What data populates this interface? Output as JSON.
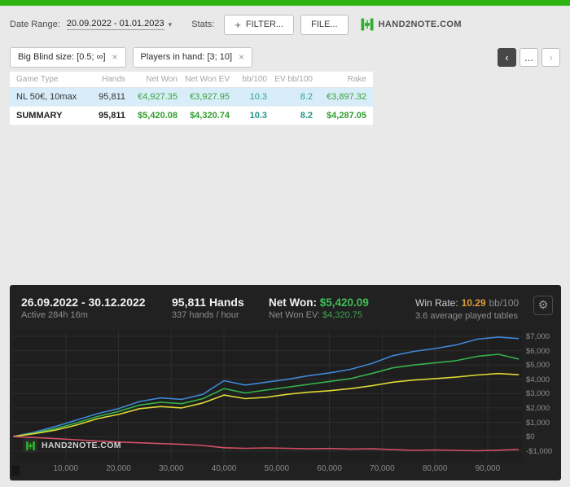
{
  "header": {
    "date_range_label": "Date Range:",
    "date_range_value": "20.09.2022 - 01.01.2023",
    "stats_label": "Stats:",
    "filter_button": "FILTER...",
    "file_button": "FILE...",
    "logo_text": "HAND2NOTE.COM"
  },
  "icons": {
    "close": "×",
    "caret": "▾",
    "plus": "+",
    "prev": "‹",
    "next": "›",
    "ellipsis": "...",
    "gear": "⚙"
  },
  "filters": {
    "chips": [
      {
        "label": "Big Blind size: [0.5; ∞]"
      },
      {
        "label": "Players in hand: [3; 10]"
      }
    ]
  },
  "table": {
    "columns": [
      "Game Type",
      "Hands",
      "Net Won",
      "Net Won EV",
      "bb/100",
      "EV bb/100",
      "Rake"
    ],
    "rows": [
      {
        "game_type": "NL 50€, 10max",
        "hands": "95,811",
        "net_won": "€4,927.35",
        "net_won_ev": "€3,927.95",
        "bb100": "10.3",
        "ev_bb100": "8.2",
        "rake": "€3,897.32"
      },
      {
        "game_type": "SUMMARY",
        "hands": "95,811",
        "net_won": "$5,420.08",
        "net_won_ev": "$4,320.74",
        "bb100": "10.3",
        "ev_bb100": "8.2",
        "rake": "$4,287.05"
      }
    ]
  },
  "panel": {
    "date_range": "26.09.2022 - 30.12.2022",
    "active_time": "Active 284h 16m",
    "hands": "95,811 Hands",
    "hands_per_hour": "337 hands / hour",
    "net_won_label": "Net Won:",
    "net_won_value": "$5,420.09",
    "net_won_ev_label": "Net Won EV:",
    "net_won_ev_value": "$4,320.75",
    "win_rate_label": "Win Rate:",
    "win_rate_value": "10.29",
    "win_rate_unit": "bb/100",
    "avg_tables": "3.6 average played tables",
    "watermark": "HAND2NOTE.COM"
  },
  "chart_data": {
    "type": "line",
    "grid": true,
    "legend": "none",
    "xlim": [
      0,
      96500
    ],
    "ylim": [
      -1700,
      7400
    ],
    "x": [
      0,
      4000,
      8000,
      12000,
      16000,
      20000,
      24000,
      28000,
      32000,
      36000,
      40000,
      44000,
      48000,
      52000,
      56000,
      60000,
      64000,
      68000,
      72000,
      76000,
      80000,
      84000,
      88000,
      92000,
      95811
    ],
    "series": [
      {
        "name": "blue-line",
        "color": "#3f87d6",
        "values": [
          0,
          300,
          700,
          1150,
          1600,
          1950,
          2450,
          2700,
          2600,
          2950,
          3900,
          3600,
          3800,
          4000,
          4250,
          4450,
          4700,
          5100,
          5650,
          5950,
          6150,
          6400,
          6800,
          6950,
          6850
        ]
      },
      {
        "name": "green-line",
        "color": "#35b24a",
        "values": [
          0,
          250,
          550,
          950,
          1400,
          1750,
          2200,
          2400,
          2300,
          2650,
          3350,
          3050,
          3250,
          3450,
          3650,
          3850,
          4050,
          4400,
          4800,
          5000,
          5150,
          5300,
          5600,
          5750,
          5420
        ]
      },
      {
        "name": "yellow-line",
        "color": "#ddd835",
        "values": [
          0,
          200,
          450,
          800,
          1250,
          1550,
          1950,
          2100,
          2000,
          2350,
          2900,
          2650,
          2750,
          2950,
          3100,
          3200,
          3350,
          3550,
          3800,
          3950,
          4050,
          4150,
          4300,
          4400,
          4321
        ]
      },
      {
        "name": "red-line",
        "color": "#d44f66",
        "values": [
          0,
          -70,
          -140,
          -220,
          -310,
          -380,
          -430,
          -490,
          -540,
          -620,
          -780,
          -820,
          -790,
          -820,
          -850,
          -830,
          -870,
          -850,
          -910,
          -960,
          -930,
          -960,
          -990,
          -950,
          -900
        ]
      }
    ],
    "x_ticks": [
      {
        "v": 10000,
        "label": "10,000"
      },
      {
        "v": 20000,
        "label": "20,000"
      },
      {
        "v": 30000,
        "label": "30,000"
      },
      {
        "v": 40000,
        "label": "40,000"
      },
      {
        "v": 50000,
        "label": "50,000"
      },
      {
        "v": 60000,
        "label": "60,000"
      },
      {
        "v": 70000,
        "label": "70,000"
      },
      {
        "v": 80000,
        "label": "80,000"
      },
      {
        "v": 90000,
        "label": "90,000"
      }
    ],
    "y_ticks": [
      {
        "v": 7000,
        "label": "$7,000"
      },
      {
        "v": 6000,
        "label": "$6,000"
      },
      {
        "v": 5000,
        "label": "$5,000"
      },
      {
        "v": 4000,
        "label": "$4,000"
      },
      {
        "v": 3000,
        "label": "$3,000"
      },
      {
        "v": 2000,
        "label": "$2,000"
      },
      {
        "v": 1000,
        "label": "$1,000"
      },
      {
        "v": 0,
        "label": "$0"
      },
      {
        "v": -1000,
        "label": "-$1,000"
      }
    ]
  },
  "colors": {
    "topbar_green": "#2eb412",
    "logo_green": "#2fae2f",
    "highlight_row": "#d8edf9",
    "money_green": "#3aa23a",
    "bb_teal": "#2aa198",
    "panel_bg": "#212121",
    "win_rate_orange": "#e09a3c"
  }
}
